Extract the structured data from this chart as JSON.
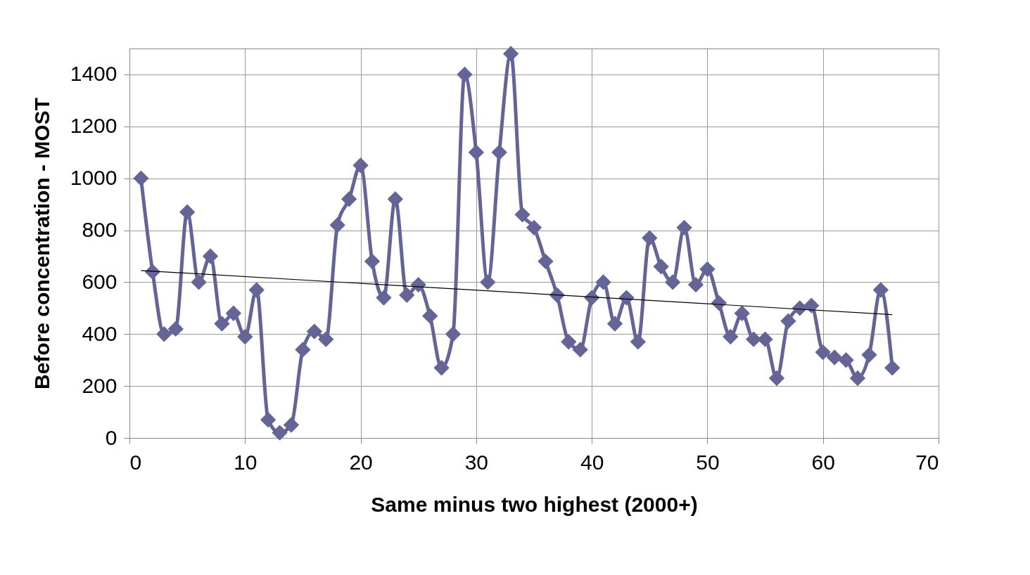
{
  "chart_data": {
    "type": "line",
    "xlabel": "Same minus two highest (2000+)",
    "ylabel": "Before concentration - MOST",
    "xlim": [
      0,
      70
    ],
    "xticks": [
      0,
      10,
      20,
      30,
      40,
      50,
      60,
      70
    ],
    "ylim": [
      0,
      1500
    ],
    "yticks": [
      0,
      200,
      400,
      600,
      800,
      1000,
      1200,
      1400
    ],
    "grid": true,
    "marker": "diamond",
    "line_style": "solid",
    "series": [
      {
        "color": "#646496",
        "x": [
          1,
          2,
          3,
          4,
          5,
          6,
          7,
          8,
          9,
          10,
          11,
          12,
          13,
          14,
          15,
          16,
          17,
          18,
          19,
          20,
          21,
          22,
          23,
          24,
          25,
          26,
          27,
          28,
          29,
          30,
          31,
          32,
          33,
          34,
          35,
          36,
          37,
          38,
          39,
          40,
          41,
          42,
          43,
          44,
          45,
          46,
          47,
          48,
          49,
          50,
          51,
          52,
          53,
          54,
          55,
          56,
          57,
          58,
          59,
          60,
          61,
          62,
          63,
          64,
          65,
          66
        ],
        "values": [
          1000,
          640,
          400,
          420,
          870,
          600,
          700,
          440,
          480,
          390,
          570,
          70,
          20,
          50,
          340,
          410,
          380,
          820,
          920,
          1050,
          680,
          540,
          920,
          550,
          590,
          470,
          270,
          400,
          1400,
          1100,
          600,
          1100,
          1480,
          860,
          810,
          680,
          550,
          370,
          340,
          540,
          600,
          440,
          540,
          370,
          770,
          660,
          600,
          810,
          590,
          650,
          520,
          390,
          480,
          380,
          380,
          230,
          450,
          500,
          510,
          330,
          310,
          300,
          230,
          320,
          570,
          270
        ]
      },
      {
        "type": "line",
        "color": "#000000",
        "marker": "none",
        "x": [
          1,
          66
        ],
        "values": [
          645,
          475
        ]
      }
    ]
  }
}
